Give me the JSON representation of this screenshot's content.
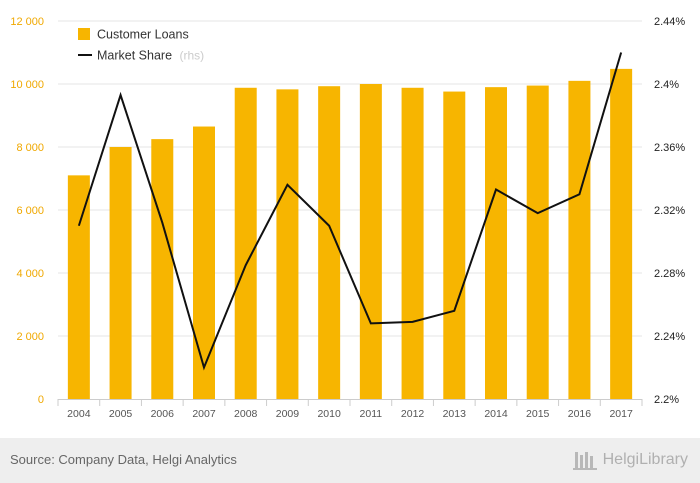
{
  "chart_data": {
    "type": "bar",
    "categories": [
      "2004",
      "2005",
      "2006",
      "2007",
      "2008",
      "2009",
      "2010",
      "2011",
      "2012",
      "2013",
      "2014",
      "2015",
      "2016",
      "2017"
    ],
    "series": [
      {
        "name": "Customer Loans",
        "type": "bar",
        "axis": "left",
        "color": "#f7b500",
        "values": [
          7100,
          8000,
          8250,
          8650,
          9880,
          9830,
          9930,
          10000,
          9880,
          9760,
          9900,
          9950,
          10100,
          10480
        ]
      },
      {
        "name": "Market Share",
        "type": "line",
        "axis": "right",
        "color": "#111111",
        "values": [
          2.31,
          2.393,
          2.312,
          2.22,
          2.285,
          2.336,
          2.31,
          2.248,
          2.249,
          2.256,
          2.333,
          2.318,
          2.33,
          2.42
        ]
      }
    ],
    "left_axis": {
      "ylim": [
        0,
        12000
      ],
      "ticks": [
        "0",
        "2 000",
        "4 000",
        "6 000",
        "8 000",
        "10 000",
        "12 000"
      ]
    },
    "right_axis": {
      "ylim": [
        2.2,
        2.44
      ],
      "ticks": [
        "2.2%",
        "2.24%",
        "2.28%",
        "2.32%",
        "2.36%",
        "2.4%",
        "2.44%"
      ]
    },
    "grid": true,
    "legend_position": "top-left"
  },
  "legend": {
    "bar_label": "Customer Loans",
    "line_label": "Market Share",
    "line_suffix": "(rhs)"
  },
  "footer": {
    "source": "Source: Company Data, Helgi Analytics",
    "brand": "HelgiLibrary"
  }
}
